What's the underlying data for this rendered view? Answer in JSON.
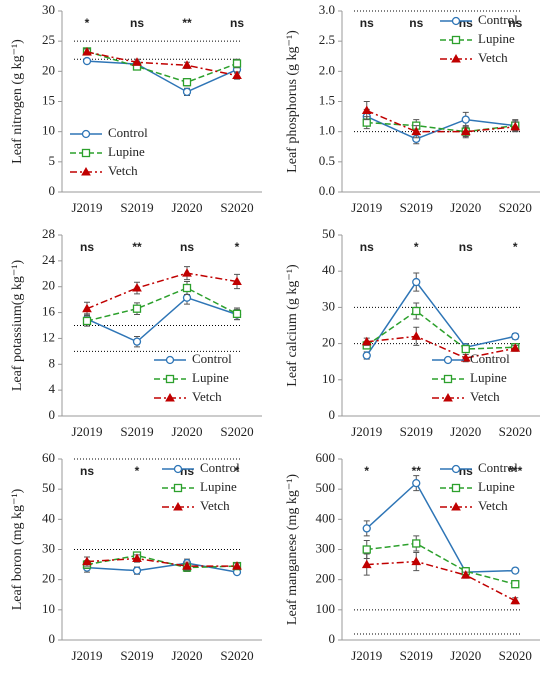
{
  "chart_data": [
    {
      "type": "line",
      "ylabel": "Leaf nitrogen (g kg⁻¹)",
      "categories": [
        "J2019",
        "S2019",
        "J2020",
        "S2020"
      ],
      "ylim": [
        0,
        30
      ],
      "yticks": [
        0,
        5,
        10,
        15,
        20,
        25,
        30
      ],
      "reference_lines": [
        25,
        22
      ],
      "significance": [
        "*",
        "ns",
        "**",
        "ns"
      ],
      "legend": "lower left",
      "series": [
        {
          "name": "Control",
          "color": "#2e75b6",
          "marker": "circle",
          "dash": "solid",
          "values": [
            21.7,
            21.2,
            16.6,
            20.3
          ],
          "errors": [
            0.4,
            0.5,
            0.6,
            0.6
          ]
        },
        {
          "name": "Lupine",
          "color": "#2ca02c",
          "marker": "square",
          "dash": "dashed",
          "values": [
            23.3,
            20.8,
            18.2,
            21.3
          ],
          "errors": [
            0.5,
            0.5,
            0.6,
            0.7
          ]
        },
        {
          "name": "Vetch",
          "color": "#c00000",
          "marker": "triangle",
          "dash": "dashdot",
          "values": [
            23.2,
            21.5,
            21.0,
            19.3
          ],
          "errors": [
            0.5,
            0.5,
            0.5,
            0.6
          ]
        }
      ]
    },
    {
      "type": "line",
      "ylabel": "Leaf phosphorus (g kg⁻¹)",
      "categories": [
        "J2019",
        "S2019",
        "J2020",
        "S2020"
      ],
      "ylim": [
        0,
        3
      ],
      "yticks": [
        {
          "value": 0,
          "label": "0.0"
        },
        {
          "value": 0.5,
          "label": "0.5"
        },
        {
          "value": 1,
          "label": "1.0"
        },
        {
          "value": 1.5,
          "label": "1.5"
        },
        {
          "value": 2,
          "label": "2.0"
        },
        {
          "value": 2.5,
          "label": "2.5"
        },
        {
          "value": 3,
          "label": "3.0"
        }
      ],
      "reference_lines": [
        3,
        1
      ],
      "significance": [
        "ns",
        "ns",
        "ns",
        "ns"
      ],
      "legend": "upper right",
      "series": [
        {
          "name": "Control",
          "color": "#2e75b6",
          "marker": "circle",
          "dash": "solid",
          "values": [
            1.25,
            0.88,
            1.2,
            1.1
          ],
          "errors": [
            0.12,
            0.08,
            0.12,
            0.1
          ]
        },
        {
          "name": "Lupine",
          "color": "#2ca02c",
          "marker": "square",
          "dash": "dashed",
          "values": [
            1.15,
            1.1,
            1.0,
            1.1
          ],
          "errors": [
            0.1,
            0.1,
            0.08,
            0.08
          ]
        },
        {
          "name": "Vetch",
          "color": "#c00000",
          "marker": "triangle",
          "dash": "dashdot",
          "values": [
            1.35,
            1.0,
            1.0,
            1.08
          ],
          "errors": [
            0.15,
            0.1,
            0.1,
            0.08
          ]
        }
      ]
    },
    {
      "type": "line",
      "ylabel": "Leaf potassium(g kg⁻¹)",
      "categories": [
        "J2019",
        "S2019",
        "J2020",
        "S2020"
      ],
      "ylim": [
        0,
        28
      ],
      "yticks": [
        0,
        4,
        8,
        12,
        16,
        20,
        24,
        28
      ],
      "reference_lines": [
        14,
        10
      ],
      "significance": [
        "ns",
        "**",
        "ns",
        "*"
      ],
      "legend": "lower right",
      "series": [
        {
          "name": "Control",
          "color": "#2e75b6",
          "marker": "circle",
          "dash": "solid",
          "values": [
            15,
            11.5,
            18.3,
            15.7
          ],
          "errors": [
            0.8,
            0.8,
            1.0,
            0.8
          ]
        },
        {
          "name": "Lupine",
          "color": "#2ca02c",
          "marker": "square",
          "dash": "dashed",
          "values": [
            14.7,
            16.6,
            19.8,
            15.8
          ],
          "errors": [
            0.8,
            0.9,
            1.0,
            0.9
          ]
        },
        {
          "name": "Vetch",
          "color": "#c00000",
          "marker": "triangle",
          "dash": "dashdot",
          "values": [
            16.6,
            19.8,
            22.1,
            20.8
          ],
          "errors": [
            1.0,
            0.9,
            1.0,
            1.1
          ]
        }
      ]
    },
    {
      "type": "line",
      "ylabel": "Leaf calcium (g kg⁻¹)",
      "categories": [
        "J2019",
        "S2019",
        "J2020",
        "S2020"
      ],
      "ylim": [
        0,
        50
      ],
      "yticks": [
        0,
        10,
        20,
        30,
        40,
        50
      ],
      "reference_lines": [
        30,
        20
      ],
      "significance": [
        "ns",
        "*",
        "ns",
        "*"
      ],
      "legend": "lower right",
      "series": [
        {
          "name": "Control",
          "color": "#2e75b6",
          "marker": "circle",
          "dash": "solid",
          "values": [
            16.7,
            37,
            19,
            22
          ],
          "errors": [
            1.0,
            2.5,
            1.0,
            0.8
          ]
        },
        {
          "name": "Lupine",
          "color": "#2ca02c",
          "marker": "square",
          "dash": "dashed",
          "values": [
            19.5,
            29,
            18.5,
            19
          ],
          "errors": [
            1.0,
            2.2,
            1.0,
            0.8
          ]
        },
        {
          "name": "Vetch",
          "color": "#c00000",
          "marker": "triangle",
          "dash": "dashdot",
          "values": [
            20.5,
            22,
            16,
            18.7
          ],
          "errors": [
            1.0,
            2.5,
            1.0,
            0.8
          ]
        }
      ]
    },
    {
      "type": "line",
      "ylabel": "Leaf boron (mg kg⁻¹)",
      "categories": [
        "J2019",
        "S2019",
        "J2020",
        "S2020"
      ],
      "ylim": [
        0,
        60
      ],
      "yticks": [
        0,
        10,
        20,
        30,
        40,
        50,
        60
      ],
      "reference_lines": [
        60,
        30
      ],
      "significance": [
        "ns",
        "*",
        "ns",
        "*"
      ],
      "legend": "upper right",
      "series": [
        {
          "name": "Control",
          "color": "#2e75b6",
          "marker": "circle",
          "dash": "solid",
          "values": [
            24,
            23,
            25.5,
            22.5
          ],
          "errors": [
            1.5,
            1.2,
            1.3,
            0.8
          ]
        },
        {
          "name": "Lupine",
          "color": "#2ca02c",
          "marker": "square",
          "dash": "dashed",
          "values": [
            25,
            28,
            24,
            24.5
          ],
          "errors": [
            1.3,
            1.0,
            1.3,
            1.0
          ]
        },
        {
          "name": "Vetch",
          "color": "#c00000",
          "marker": "triangle",
          "dash": "dashdot",
          "values": [
            26,
            27,
            24.5,
            24.5
          ],
          "errors": [
            1.5,
            1.2,
            1.3,
            1.0
          ]
        }
      ]
    },
    {
      "type": "line",
      "ylabel": "Leaf manganese (mg kg⁻¹)",
      "categories": [
        "J2019",
        "S2019",
        "J2020",
        "S2020"
      ],
      "ylim": [
        0,
        600
      ],
      "yticks": [
        0,
        100,
        200,
        300,
        400,
        500,
        600
      ],
      "reference_lines": [
        100,
        20
      ],
      "significance": [
        "*",
        "**",
        "ns",
        "***"
      ],
      "legend": "upper right",
      "series": [
        {
          "name": "Control",
          "color": "#2e75b6",
          "marker": "circle",
          "dash": "solid",
          "values": [
            370,
            520,
            225,
            230
          ],
          "errors": [
            25,
            25,
            10,
            8
          ]
        },
        {
          "name": "Lupine",
          "color": "#2ca02c",
          "marker": "square",
          "dash": "dashed",
          "values": [
            300,
            320,
            228,
            185
          ],
          "errors": [
            30,
            25,
            12,
            10
          ]
        },
        {
          "name": "Vetch",
          "color": "#c00000",
          "marker": "triangle",
          "dash": "dashdot",
          "values": [
            250,
            260,
            215,
            130
          ],
          "errors": [
            35,
            30,
            10,
            10
          ]
        }
      ]
    }
  ]
}
